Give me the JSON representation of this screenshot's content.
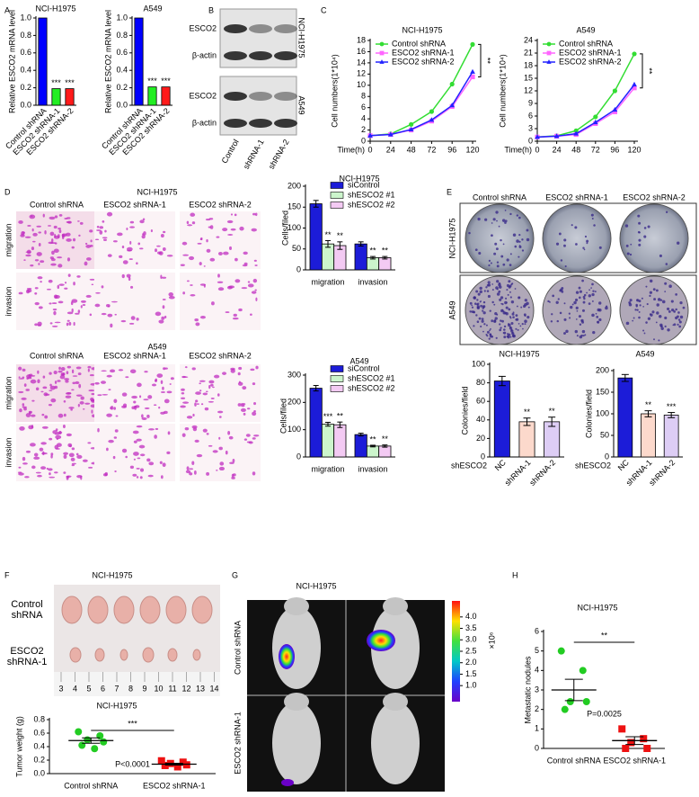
{
  "panel_letters": [
    "A",
    "B",
    "C",
    "D",
    "E",
    "F",
    "G",
    "H"
  ],
  "blots": {
    "bands": [
      "ESCO2",
      "β-actin"
    ],
    "cell_lines": [
      "NCI-H1975",
      "A549"
    ],
    "lanes": [
      "Control",
      "shRNA-1",
      "shRNA-2"
    ]
  },
  "transwell": {
    "titles": [
      "NCI-H1975",
      "A549"
    ],
    "columns": [
      "Control shRNA",
      "ESCO2 shRNA-1",
      "ESCO2 shRNA-2"
    ],
    "rows": [
      "migration",
      "invasion"
    ]
  },
  "colony": {
    "columns": [
      "Control shRNA",
      "ESCO2 shRNA-1",
      "ESCO2 shRNA-2"
    ],
    "rows": [
      "NCI-H1975",
      "A549"
    ]
  },
  "tumor_photo": {
    "title": "NCI-H1975",
    "rows": [
      "Control shRNA",
      "ESCO2 shRNA-1"
    ],
    "ruler": [
      3,
      4,
      5,
      6,
      7,
      8,
      9,
      10,
      11,
      12,
      13,
      14
    ]
  },
  "imaging": {
    "title": "NCI-H1975",
    "rows": [
      "Control shRNA",
      "ESCO2 shRNA-1"
    ],
    "colorbar": {
      "unit": "×10⁶",
      "lim": [
        0.3,
        4.7
      ],
      "ticks": [
        {
          "value": 1,
          "label": "1.0"
        },
        {
          "value": 1.5,
          "label": "1.5"
        },
        {
          "value": 2,
          "label": "2.0"
        },
        {
          "value": 2.5,
          "label": "2.5"
        },
        {
          "value": 3,
          "label": "3.0"
        },
        {
          "value": 3.5,
          "label": "3.5"
        },
        {
          "value": 4,
          "label": "4.0"
        }
      ]
    }
  },
  "chart_data": [
    {
      "type": "bar",
      "title": "NCI-H1975",
      "ylabel": "Relative ESCO2 mRNA level",
      "categories": [
        "Control shRNA",
        "ESCO2 shRNA-1",
        "ESCO2 shRNA-2"
      ],
      "values": [
        1.0,
        0.19,
        0.19
      ],
      "colors": [
        "#0000ff",
        "#22ee22",
        "#ff1a1a"
      ],
      "ylim": [
        0,
        1
      ],
      "yticks": [
        {
          "value": 0,
          "label": "0.0"
        },
        {
          "value": 0.2,
          "label": "0.2"
        },
        {
          "value": 0.4,
          "label": "0.4"
        },
        {
          "value": 0.6,
          "label": "0.6"
        },
        {
          "value": 0.8,
          "label": "0.8"
        },
        {
          "value": 1,
          "label": "1.0"
        }
      ],
      "annotations": [
        {
          "index": 1,
          "text": "***"
        },
        {
          "index": 2,
          "text": "***"
        }
      ]
    },
    {
      "type": "bar",
      "title": "A549",
      "ylabel": "Relative ESCO2 mRNA level",
      "categories": [
        "Control shRNA",
        "ESCO2 shRNA-1",
        "ESCO2 shRNA-2"
      ],
      "values": [
        1.0,
        0.21,
        0.21
      ],
      "colors": [
        "#0000ff",
        "#22ee22",
        "#ff1a1a"
      ],
      "ylim": [
        0,
        1
      ],
      "yticks": [
        {
          "value": 0,
          "label": "0.0"
        },
        {
          "value": 0.2,
          "label": "0.2"
        },
        {
          "value": 0.4,
          "label": "0.4"
        },
        {
          "value": 0.6,
          "label": "0.6"
        },
        {
          "value": 0.8,
          "label": "0.8"
        },
        {
          "value": 1,
          "label": "1.0"
        }
      ],
      "annotations": [
        {
          "index": 1,
          "text": "***"
        },
        {
          "index": 2,
          "text": "***"
        }
      ]
    },
    {
      "type": "line",
      "title": "NCI-H1975",
      "ylabel": "Cell numbers(1*10⁴)",
      "xlabel": "Time(h)",
      "x": [
        0,
        24,
        48,
        72,
        96,
        120
      ],
      "xlim": [
        0,
        120
      ],
      "xticks": [
        0,
        24,
        48,
        72,
        96,
        120
      ],
      "ylim": [
        0,
        18
      ],
      "yticks": [
        0,
        2,
        4,
        6,
        8,
        10,
        12,
        14,
        16,
        18
      ],
      "series": [
        {
          "name": "Control shRNA",
          "color": "#33dd33",
          "marker": "circle",
          "values": [
            1,
            1.3,
            3,
            5.3,
            10.2,
            17.3
          ]
        },
        {
          "name": "ESCO2 shRNA-1",
          "color": "#ff66ff",
          "marker": "square",
          "values": [
            1,
            1.2,
            2,
            3.6,
            6.2,
            11.5
          ]
        },
        {
          "name": "ESCO2 shRNA-2",
          "color": "#2222ff",
          "marker": "triangle",
          "values": [
            1,
            1.2,
            2.1,
            3.8,
            6.4,
            12.4
          ]
        }
      ],
      "annotations": [
        {
          "text": "**"
        }
      ]
    },
    {
      "type": "line",
      "title": "A549",
      "ylabel": "Cell numbers(1*10⁴)",
      "xlabel": "Time(h)",
      "x": [
        0,
        24,
        48,
        72,
        96,
        120
      ],
      "xlim": [
        0,
        120
      ],
      "xticks": [
        0,
        24,
        48,
        72,
        96,
        120
      ],
      "ylim": [
        0,
        24
      ],
      "yticks": [
        0,
        3,
        6,
        9,
        12,
        15,
        18,
        21,
        24
      ],
      "series": [
        {
          "name": "Control shRNA",
          "color": "#33dd33",
          "marker": "circle",
          "values": [
            1,
            1.3,
            2.5,
            5.8,
            12,
            20.8
          ]
        },
        {
          "name": "ESCO2 shRNA-1",
          "color": "#ff66ff",
          "marker": "square",
          "values": [
            1,
            1.2,
            1.6,
            4.2,
            7,
            12.7
          ]
        },
        {
          "name": "ESCO2 shRNA-2",
          "color": "#2222ff",
          "marker": "triangle",
          "values": [
            1,
            1.2,
            1.8,
            4.5,
            7.5,
            13.5
          ]
        }
      ],
      "annotations": [
        {
          "text": "**"
        }
      ]
    },
    {
      "type": "grouped_bar",
      "title": "NCI-H1975",
      "ylabel": "Cells/filed",
      "categories": [
        "migration",
        "invasion"
      ],
      "ylim": [
        0,
        200
      ],
      "yticks": [
        0,
        50,
        100,
        150,
        200
      ],
      "series": [
        {
          "name": "siControl",
          "color": "#1c1cd8",
          "values": [
            158,
            62
          ],
          "errors": [
            8,
            5
          ]
        },
        {
          "name": "shESCO2 #1",
          "color": "#ccf5cc",
          "values": [
            62,
            29
          ],
          "errors": [
            8,
            3
          ],
          "annotations": [
            "**",
            "**"
          ]
        },
        {
          "name": "shESCO2 #2",
          "color": "#f3caf3",
          "values": [
            58,
            29
          ],
          "errors": [
            9,
            3
          ],
          "annotations": [
            "**",
            "**"
          ]
        }
      ]
    },
    {
      "type": "grouped_bar",
      "title": "A549",
      "ylabel": "Cells/filed",
      "categories": [
        "migration",
        "invasion"
      ],
      "ylim": [
        0,
        300
      ],
      "yticks": [
        0,
        100,
        200,
        300
      ],
      "series": [
        {
          "name": "siControl",
          "color": "#1c1cd8",
          "values": [
            252,
            82
          ],
          "errors": [
            10,
            5
          ]
        },
        {
          "name": "shESCO2 #1",
          "color": "#ccf5cc",
          "values": [
            120,
            40
          ],
          "errors": [
            7,
            3
          ],
          "annotations": [
            "***",
            "**"
          ]
        },
        {
          "name": "shESCO2 #2",
          "color": "#f3caf3",
          "values": [
            118,
            40
          ],
          "errors": [
            10,
            4
          ],
          "annotations": [
            "**",
            "**"
          ]
        }
      ]
    },
    {
      "type": "bar",
      "title": "NCI-H1975",
      "ylabel": "Colonies/field",
      "xlabel": "shESCO2",
      "categories": [
        "NC",
        "shRNA-1",
        "shRNA-2"
      ],
      "values": [
        82,
        38,
        38
      ],
      "errors": [
        5,
        4,
        5
      ],
      "colors": [
        "#1c1cd8",
        "#fcd9cc",
        "#ddcdf5"
      ],
      "ylim": [
        0,
        100
      ],
      "yticks": [
        0,
        20,
        40,
        60,
        80,
        100
      ],
      "annotations": [
        {
          "index": 1,
          "text": "**"
        },
        {
          "index": 2,
          "text": "**"
        }
      ]
    },
    {
      "type": "bar",
      "title": "A549",
      "ylabel": "Colonies/field",
      "xlabel": "shESCO2",
      "categories": [
        "NC",
        "shRNA-1",
        "shRNA-2"
      ],
      "values": [
        183,
        100,
        97
      ],
      "errors": [
        8,
        7,
        6
      ],
      "colors": [
        "#1c1cd8",
        "#fcd9cc",
        "#ddcdf5"
      ],
      "ylim": [
        0,
        200
      ],
      "yticks": [
        0,
        50,
        100,
        150,
        200
      ],
      "annotations": [
        {
          "index": 1,
          "text": "**"
        },
        {
          "index": 2,
          "text": "***"
        }
      ]
    },
    {
      "type": "strip",
      "title": "NCI-H1975",
      "ylabel": "Tumor weight (g)",
      "categories": [
        "Control shRNA",
        "ESCO2 shRNA-1"
      ],
      "series": [
        {
          "color": "#22cc22",
          "marker": "circle",
          "values": [
            0.62,
            0.56,
            0.5,
            0.47,
            0.42,
            0.37
          ],
          "mean": 0.49,
          "sem": 0.04
        },
        {
          "color": "#ee1111",
          "marker": "square",
          "values": [
            0.19,
            0.17,
            0.15,
            0.13,
            0.12,
            0.1
          ],
          "mean": 0.14,
          "sem": 0.013
        }
      ],
      "ylim": [
        0,
        0.8
      ],
      "yticks": [
        {
          "value": 0,
          "label": "0.0"
        },
        {
          "value": 0.2,
          "label": "0.2"
        },
        {
          "value": 0.4,
          "label": "0.4"
        },
        {
          "value": 0.6,
          "label": "0.6"
        },
        {
          "value": 0.8,
          "label": "0.8"
        }
      ],
      "annotation": "***",
      "p_value": "P<0.0001"
    },
    {
      "type": "strip",
      "title": "NCI-H1975",
      "ylabel": "Metastatic nodules",
      "categories": [
        "Control shRNA",
        "ESCO2 shRNA-1"
      ],
      "series": [
        {
          "color": "#22cc22",
          "marker": "circle",
          "values": [
            5,
            4,
            2.4,
            2.4,
            2
          ],
          "mean": 3,
          "sem": 0.55
        },
        {
          "color": "#ee1111",
          "marker": "square",
          "values": [
            1,
            0.5,
            0.3,
            0,
            0
          ],
          "mean": 0.4,
          "sem": 0.2
        }
      ],
      "ylim": [
        0,
        6
      ],
      "yticks": [
        0,
        1,
        2,
        3,
        4,
        5,
        6
      ],
      "annotation": "**",
      "p_value": "P=0.0025"
    }
  ]
}
